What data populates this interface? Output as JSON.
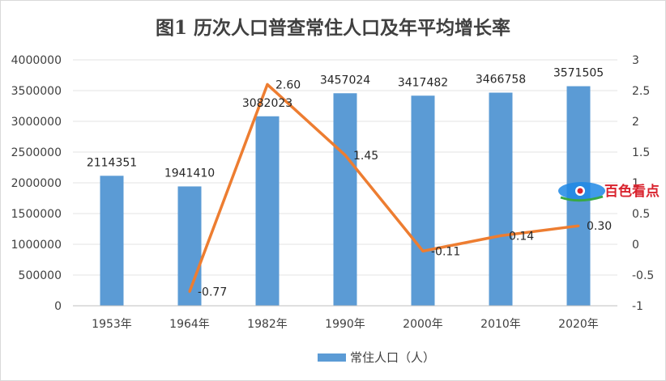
{
  "chart_data": {
    "type": "bar",
    "title": "图1  历次人口普查常住人口及年平均增长率",
    "categories": [
      "1953年",
      "1964年",
      "1982年",
      "1990年",
      "2000年",
      "2010年",
      "2020年"
    ],
    "series": [
      {
        "name": "常住人口（人）",
        "type": "bar",
        "axis": "left",
        "values": [
          2114351,
          1941410,
          3082023,
          3457024,
          3417482,
          3466758,
          3571505
        ],
        "labels": [
          "2114351",
          "1941410",
          "3082023",
          "3457024",
          "3417482",
          "3466758",
          "3571505"
        ],
        "color": "#5b9bd5"
      },
      {
        "type": "line",
        "axis": "right",
        "values": [
          null,
          -0.77,
          2.6,
          1.45,
          -0.11,
          0.14,
          0.3
        ],
        "labels": [
          "",
          "-0.77",
          "2.60",
          "1.45",
          "-0.11",
          "0.14",
          "0.30"
        ],
        "color": "#ed7d31"
      }
    ],
    "y_left": {
      "min": 0,
      "max": 4000000,
      "ticks": [
        "0",
        "500000",
        "1000000",
        "1500000",
        "2000000",
        "2500000",
        "3000000",
        "3500000",
        "4000000"
      ]
    },
    "y_right": {
      "min": -1,
      "max": 3,
      "ticks": [
        "-1",
        "-0.5",
        "0",
        "0.5",
        "1",
        "1.5",
        "2",
        "2.5",
        "3"
      ]
    },
    "grid": true,
    "legend_position": "bottom"
  },
  "watermark": {
    "text": "百色看点"
  }
}
